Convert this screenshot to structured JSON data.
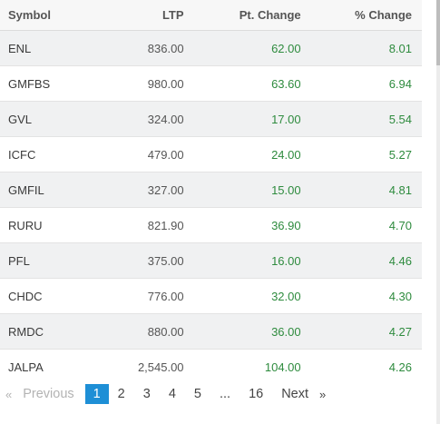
{
  "table": {
    "headers": {
      "symbol": "Symbol",
      "ltp": "LTP",
      "pt_change": "Pt. Change",
      "pct_change": "% Change"
    },
    "rows": [
      {
        "symbol": "ENL",
        "ltp": "836.00",
        "pt_change": "62.00",
        "pct_change": "8.01"
      },
      {
        "symbol": "GMFBS",
        "ltp": "980.00",
        "pt_change": "63.60",
        "pct_change": "6.94"
      },
      {
        "symbol": "GVL",
        "ltp": "324.00",
        "pt_change": "17.00",
        "pct_change": "5.54"
      },
      {
        "symbol": "ICFC",
        "ltp": "479.00",
        "pt_change": "24.00",
        "pct_change": "5.27"
      },
      {
        "symbol": "GMFIL",
        "ltp": "327.00",
        "pt_change": "15.00",
        "pct_change": "4.81"
      },
      {
        "symbol": "RURU",
        "ltp": "821.90",
        "pt_change": "36.90",
        "pct_change": "4.70"
      },
      {
        "symbol": "PFL",
        "ltp": "375.00",
        "pt_change": "16.00",
        "pct_change": "4.46"
      },
      {
        "symbol": "CHDC",
        "ltp": "776.00",
        "pt_change": "32.00",
        "pct_change": "4.30"
      },
      {
        "symbol": "RMDC",
        "ltp": "880.00",
        "pt_change": "36.00",
        "pct_change": "4.27"
      },
      {
        "symbol": "JALPA",
        "ltp": "2,545.00",
        "pt_change": "104.00",
        "pct_change": "4.26"
      }
    ]
  },
  "pagination": {
    "prev_arrow": "«",
    "prev_label": "Previous",
    "pages": [
      "1",
      "2",
      "3",
      "4",
      "5"
    ],
    "ellipsis": "...",
    "last_page": "16",
    "next_label": "Next",
    "next_arrow": "»",
    "current_page": "1"
  },
  "colors": {
    "positive": "#2e8b3e",
    "active_page": "#1e8fd6"
  }
}
